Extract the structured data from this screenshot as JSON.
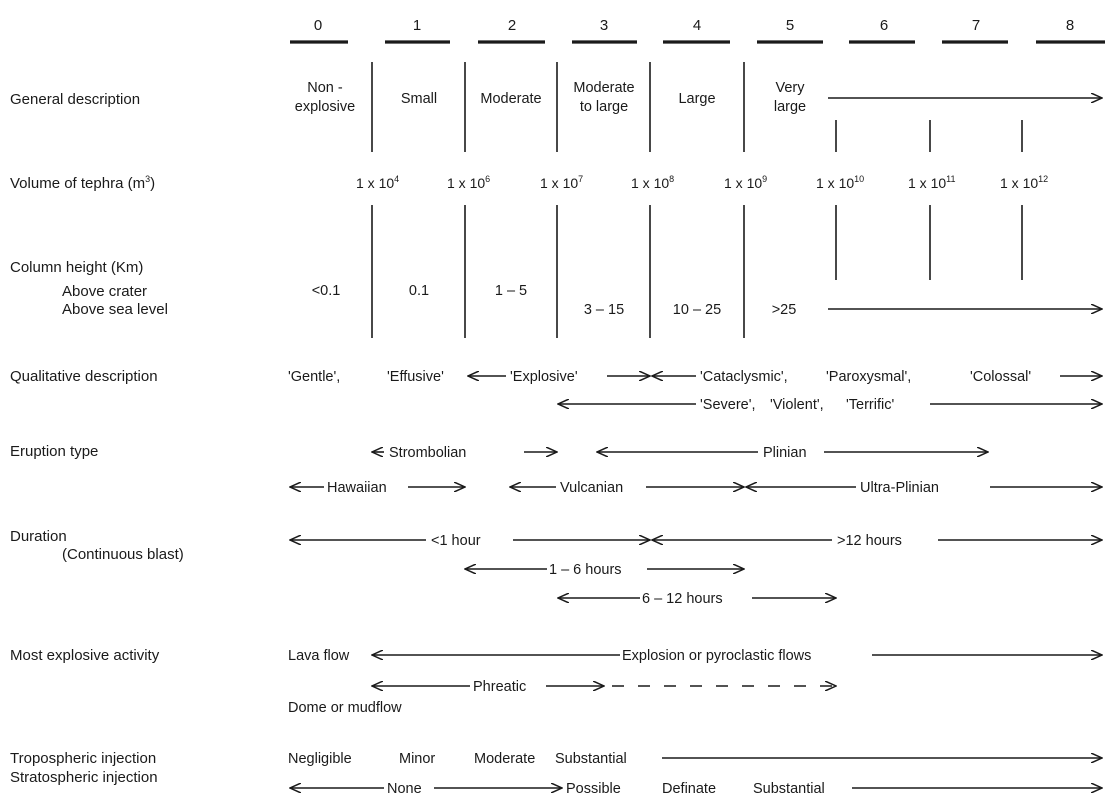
{
  "vei_indices": [
    "0",
    "1",
    "2",
    "3",
    "4",
    "5",
    "6",
    "7",
    "8"
  ],
  "rows": {
    "general_description": "General description",
    "volume_of_tephra": "Volume of  tephra (m",
    "volume_unit_exponent": "3",
    "volume_close": ")",
    "column_height": "Column height (Km)",
    "above_crater": "Above crater",
    "above_sea_level": "Above sea level",
    "qualitative_description": "Qualitative description",
    "eruption_type": "Eruption type",
    "duration": "Duration",
    "continuous_blast": "(Continuous blast)",
    "most_explosive_activity": "Most explosive activity",
    "tropospheric_injection": "Tropospheric injection",
    "stratospheric_injection": "Stratospheric injection"
  },
  "general": {
    "non_1": "Non -",
    "non_2": "explosive",
    "small": "Small",
    "moderate": "Moderate",
    "mod_large_1": "Moderate",
    "mod_large_2": "to large",
    "large": "Large",
    "very_large_1": "Very",
    "very_large_2": "large"
  },
  "volumes": [
    {
      "base": "1 x 10",
      "exp": "4"
    },
    {
      "base": "1 x 10",
      "exp": "6"
    },
    {
      "base": "1 x 10",
      "exp": "7"
    },
    {
      "base": "1 x 10",
      "exp": "8"
    },
    {
      "base": "1 x 10",
      "exp": "9"
    },
    {
      "base": "1 x 10",
      "exp": "10"
    },
    {
      "base": "1 x 10",
      "exp": "11"
    },
    {
      "base": "1 x 10",
      "exp": "12"
    }
  ],
  "column": {
    "c0": "<0.1",
    "c1": "0.1",
    "c2": "1 – 5",
    "c3": "3 – 15",
    "c4": "10 – 25",
    "c5": ">25"
  },
  "qualitative": {
    "gentle": "'Gentle',",
    "effusive": "'Effusive'",
    "explosive": "'Explosive'",
    "cataclysmic": "'Cataclysmic',",
    "paroxysmal": "'Paroxysmal',",
    "colossal": "'Colossal'",
    "severe": "'Severe',",
    "violent": "'Violent',",
    "terrific": "'Terrific'"
  },
  "eruption": {
    "strombolian": "Strombolian",
    "plinian": "Plinian",
    "hawaiian": "Hawaiian",
    "vulcanian": "Vulcanian",
    "ultra_plinian": "Ultra-Plinian"
  },
  "durations": {
    "lt1": "<1 hour",
    "gt12": ">12 hours",
    "h1_6": "1 – 6 hours",
    "h6_12": "6 – 12 hours"
  },
  "activity": {
    "lava_flow": "Lava flow",
    "explosion": "Explosion or pyroclastic flows",
    "phreatic": "Phreatic",
    "dome": "Dome or mudflow"
  },
  "injection": {
    "negligible": "Negligible",
    "minor": "Minor",
    "moderate": "Moderate",
    "substantial": "Substantial",
    "none": "None",
    "possible": "Possible",
    "definate": "Definate",
    "substantial2": "Substantial"
  }
}
